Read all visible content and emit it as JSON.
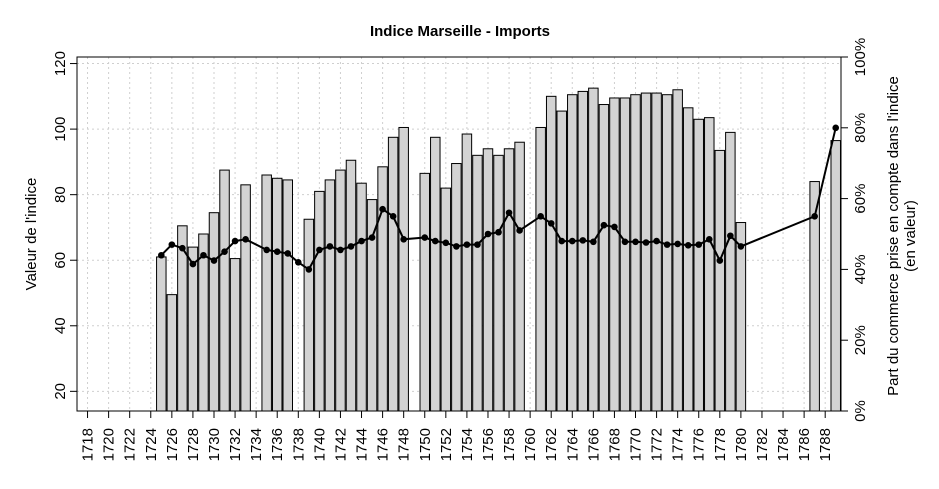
{
  "chart_data": {
    "type": "bar",
    "title": "Indice Marseille - Imports",
    "ylabel": "Valeur de l'indice",
    "y2label_line1": "Part du commerce prise en compte dans l'indice",
    "y2label_line2": "(en valeur)",
    "xlim": [
      1717,
      1789.5
    ],
    "ylim": [
      14,
      122
    ],
    "y2lim": [
      0,
      1
    ],
    "y_ticks": [
      20,
      40,
      60,
      80,
      100,
      120
    ],
    "y2_ticks": [
      0,
      0.2,
      0.4,
      0.6,
      0.8,
      1.0
    ],
    "y2_tick_labels": [
      "0%",
      "20%",
      "40%",
      "60%",
      "80%",
      "100%"
    ],
    "x_ticks": [
      1718,
      1720,
      1722,
      1724,
      1726,
      1728,
      1730,
      1732,
      1734,
      1736,
      1738,
      1740,
      1742,
      1744,
      1746,
      1748,
      1750,
      1752,
      1754,
      1756,
      1758,
      1760,
      1762,
      1764,
      1766,
      1768,
      1770,
      1772,
      1774,
      1776,
      1778,
      1780,
      1782,
      1784,
      1786,
      1788
    ],
    "grid": true,
    "colors": {
      "bar_fill": "#d3d3d3",
      "bar_stroke": "#000000",
      "line": "#000000",
      "grid": "#cfcfcf"
    },
    "bars": [
      {
        "year": 1725,
        "value": 61
      },
      {
        "year": 1726,
        "value": 49.5
      },
      {
        "year": 1727,
        "value": 70.5
      },
      {
        "year": 1728,
        "value": 64
      },
      {
        "year": 1729,
        "value": 68
      },
      {
        "year": 1730,
        "value": 74.5
      },
      {
        "year": 1731,
        "value": 87.5
      },
      {
        "year": 1732,
        "value": 60.5
      },
      {
        "year": 1733,
        "value": 83
      },
      {
        "year": 1735,
        "value": 86
      },
      {
        "year": 1736,
        "value": 85
      },
      {
        "year": 1737,
        "value": 84.5
      },
      {
        "year": 1739,
        "value": 72.5
      },
      {
        "year": 1740,
        "value": 81
      },
      {
        "year": 1741,
        "value": 84.5
      },
      {
        "year": 1742,
        "value": 87.5
      },
      {
        "year": 1743,
        "value": 90.5
      },
      {
        "year": 1744,
        "value": 83.5
      },
      {
        "year": 1745,
        "value": 78.5
      },
      {
        "year": 1746,
        "value": 88.5
      },
      {
        "year": 1747,
        "value": 97.5
      },
      {
        "year": 1748,
        "value": 100.5
      },
      {
        "year": 1750,
        "value": 86.5
      },
      {
        "year": 1751,
        "value": 97.5
      },
      {
        "year": 1752,
        "value": 82
      },
      {
        "year": 1753,
        "value": 89.5
      },
      {
        "year": 1754,
        "value": 98.5
      },
      {
        "year": 1755,
        "value": 92
      },
      {
        "year": 1756,
        "value": 94
      },
      {
        "year": 1757,
        "value": 92
      },
      {
        "year": 1758,
        "value": 94
      },
      {
        "year": 1759,
        "value": 96
      },
      {
        "year": 1761,
        "value": 100.5
      },
      {
        "year": 1762,
        "value": 110
      },
      {
        "year": 1763,
        "value": 105.5
      },
      {
        "year": 1764,
        "value": 110.5
      },
      {
        "year": 1765,
        "value": 111.5
      },
      {
        "year": 1766,
        "value": 112.5
      },
      {
        "year": 1767,
        "value": 107.5
      },
      {
        "year": 1768,
        "value": 109.5
      },
      {
        "year": 1769,
        "value": 109.5
      },
      {
        "year": 1770,
        "value": 110.5
      },
      {
        "year": 1771,
        "value": 111
      },
      {
        "year": 1772,
        "value": 111
      },
      {
        "year": 1773,
        "value": 110.5
      },
      {
        "year": 1774,
        "value": 112
      },
      {
        "year": 1775,
        "value": 106.5
      },
      {
        "year": 1776,
        "value": 103
      },
      {
        "year": 1777,
        "value": 103.5
      },
      {
        "year": 1778,
        "value": 93.5
      },
      {
        "year": 1779,
        "value": 99
      },
      {
        "year": 1780,
        "value": 71.5
      },
      {
        "year": 1787,
        "value": 84
      },
      {
        "year": 1789,
        "value": 96.5
      }
    ],
    "share_line": [
      {
        "year": 1725,
        "share": 0.44
      },
      {
        "year": 1726,
        "share": 0.47
      },
      {
        "year": 1727,
        "share": 0.46
      },
      {
        "year": 1728,
        "share": 0.415
      },
      {
        "year": 1729,
        "share": 0.44
      },
      {
        "year": 1730,
        "share": 0.425
      },
      {
        "year": 1731,
        "share": 0.45
      },
      {
        "year": 1732,
        "share": 0.48
      },
      {
        "year": 1733,
        "share": 0.485
      },
      {
        "year": 1735,
        "share": 0.455
      },
      {
        "year": 1736,
        "share": 0.45
      },
      {
        "year": 1737,
        "share": 0.445
      },
      {
        "year": 1738,
        "share": 0.42
      },
      {
        "year": 1739,
        "share": 0.4
      },
      {
        "year": 1740,
        "share": 0.455
      },
      {
        "year": 1741,
        "share": 0.465
      },
      {
        "year": 1742,
        "share": 0.455
      },
      {
        "year": 1743,
        "share": 0.465
      },
      {
        "year": 1744,
        "share": 0.48
      },
      {
        "year": 1745,
        "share": 0.49
      },
      {
        "year": 1746,
        "share": 0.57
      },
      {
        "year": 1747,
        "share": 0.55
      },
      {
        "year": 1748,
        "share": 0.485
      },
      {
        "year": 1750,
        "share": 0.49
      },
      {
        "year": 1751,
        "share": 0.48
      },
      {
        "year": 1752,
        "share": 0.475
      },
      {
        "year": 1753,
        "share": 0.465
      },
      {
        "year": 1754,
        "share": 0.47
      },
      {
        "year": 1755,
        "share": 0.47
      },
      {
        "year": 1756,
        "share": 0.5
      },
      {
        "year": 1757,
        "share": 0.505
      },
      {
        "year": 1758,
        "share": 0.56
      },
      {
        "year": 1759,
        "share": 0.51
      },
      {
        "year": 1761,
        "share": 0.55
      },
      {
        "year": 1762,
        "share": 0.53
      },
      {
        "year": 1763,
        "share": 0.48
      },
      {
        "year": 1764,
        "share": 0.48
      },
      {
        "year": 1765,
        "share": 0.482
      },
      {
        "year": 1766,
        "share": 0.478
      },
      {
        "year": 1767,
        "share": 0.525
      },
      {
        "year": 1768,
        "share": 0.52
      },
      {
        "year": 1769,
        "share": 0.478
      },
      {
        "year": 1770,
        "share": 0.478
      },
      {
        "year": 1771,
        "share": 0.476
      },
      {
        "year": 1772,
        "share": 0.48
      },
      {
        "year": 1773,
        "share": 0.47
      },
      {
        "year": 1774,
        "share": 0.472
      },
      {
        "year": 1775,
        "share": 0.468
      },
      {
        "year": 1776,
        "share": 0.47
      },
      {
        "year": 1777,
        "share": 0.485
      },
      {
        "year": 1778,
        "share": 0.425
      },
      {
        "year": 1779,
        "share": 0.495
      },
      {
        "year": 1780,
        "share": 0.465
      },
      {
        "year": 1787,
        "share": 0.55
      },
      {
        "year": 1789,
        "share": 0.8
      }
    ]
  }
}
